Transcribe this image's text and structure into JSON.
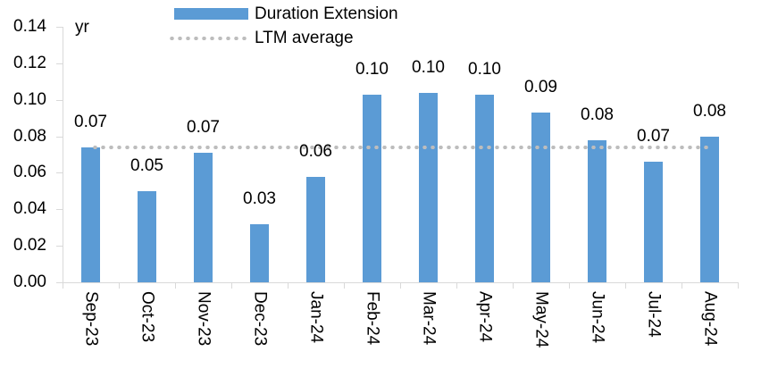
{
  "chart_data": {
    "type": "bar",
    "title": "",
    "unit_label": "yr",
    "categories": [
      "Sep-23",
      "Oct-23",
      "Nov-23",
      "Dec-23",
      "Jan-24",
      "Feb-24",
      "Mar-24",
      "Apr-24",
      "May-24",
      "Jun-24",
      "Jul-24",
      "Aug-24"
    ],
    "series": [
      {
        "name": "Duration Extension",
        "values": [
          0.074,
          0.05,
          0.071,
          0.032,
          0.058,
          0.103,
          0.104,
          0.103,
          0.093,
          0.078,
          0.066,
          0.08
        ],
        "color": "#5B9BD5"
      }
    ],
    "data_labels": [
      "0.07",
      "0.05",
      "0.07",
      "0.03",
      "0.06",
      "0.10",
      "0.10",
      "0.10",
      "0.09",
      "0.08",
      "0.07",
      "0.08"
    ],
    "reference_line": {
      "name": "LTM average",
      "value": 0.074,
      "style": "dotted",
      "color": "#BDBDBD"
    },
    "ylim": [
      0,
      0.14
    ],
    "ytick_labels": [
      "0.14",
      "0.12",
      "0.10",
      "0.08",
      "0.06",
      "0.04",
      "0.02",
      "0.00"
    ],
    "grid": false,
    "legend_position": "top-center"
  },
  "legend": {
    "items": [
      {
        "label": "Duration Extension",
        "swatch": "bar"
      },
      {
        "label": "LTM average",
        "swatch": "dotted-line"
      }
    ]
  },
  "colors": {
    "bar": "#5B9BD5",
    "dotted_line": "#BDBDBD",
    "axis": "#D9D9D9",
    "text": "#000000",
    "background": "#FFFFFF"
  }
}
